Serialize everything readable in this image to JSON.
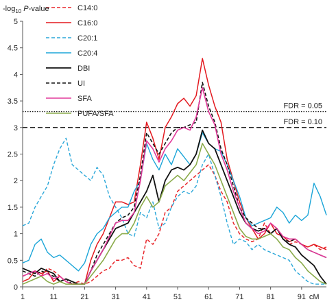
{
  "chart_data": {
    "type": "line",
    "ylabel_parts": {
      "prefix": "-log",
      "sub": "10",
      "italic": "P",
      "suffix": "-value"
    },
    "xunit": "cM",
    "xlim": [
      1,
      99
    ],
    "ylim": [
      0,
      5
    ],
    "xticks": [
      1,
      11,
      21,
      31,
      41,
      51,
      61,
      71,
      81,
      91
    ],
    "yticks": [
      0,
      0.5,
      1,
      1.5,
      2,
      2.5,
      3,
      3.5,
      4,
      4.5,
      5
    ],
    "ytick_labels": [
      "0",
      "0.5",
      "1",
      "1.5",
      "2",
      "2.5",
      "3",
      "3.5",
      "4",
      "4.5",
      "5"
    ],
    "xtick_labels": [
      "1",
      "11",
      "21",
      "31",
      "41",
      "51",
      "61",
      "71",
      "81",
      "91"
    ],
    "thresholds": [
      {
        "label": "FDR = 0.05",
        "value": 3.3,
        "style": "dotted"
      },
      {
        "label": "FDR = 0.10",
        "value": 3.0,
        "style": "dashed"
      }
    ],
    "grid": false,
    "legend_position": "top-left",
    "x": [
      1,
      3,
      5,
      7,
      9,
      11,
      13,
      15,
      17,
      19,
      21,
      23,
      25,
      27,
      29,
      31,
      33,
      35,
      37,
      39,
      41,
      43,
      45,
      47,
      49,
      51,
      53,
      55,
      57,
      59,
      61,
      63,
      65,
      67,
      69,
      71,
      73,
      75,
      77,
      79,
      81,
      83,
      85,
      87,
      89,
      91,
      93,
      95,
      97,
      99
    ],
    "series": [
      {
        "name": "C14:0",
        "color": "#e8262b",
        "dash": "5,3",
        "width": 1.5,
        "values": [
          0.2,
          0.25,
          0.3,
          0.2,
          0.35,
          0.3,
          0.2,
          0.1,
          0.05,
          0.1,
          0.05,
          0.1,
          0.2,
          0.3,
          0.35,
          0.5,
          0.5,
          0.55,
          0.4,
          0.35,
          0.9,
          0.8,
          1.0,
          1.4,
          1.5,
          1.8,
          1.9,
          2.0,
          2.1,
          2.2,
          2.3,
          2.1,
          1.8,
          1.6,
          1.2,
          1.0,
          0.9,
          0.85,
          0.9,
          1.2,
          1.0,
          1.1,
          0.9,
          0.8,
          0.85,
          0.8,
          0.75,
          0.8,
          0.7,
          0.75
        ]
      },
      {
        "name": "C16:0",
        "color": "#e3191f",
        "dash": "",
        "width": 1.5,
        "values": [
          0.1,
          0.15,
          0.3,
          0.25,
          0.3,
          0.1,
          0.2,
          0.1,
          0.05,
          0.05,
          0.05,
          0.5,
          0.8,
          1.0,
          1.3,
          1.6,
          1.6,
          1.55,
          1.6,
          2.3,
          3.1,
          2.8,
          2.4,
          3.0,
          3.2,
          3.45,
          3.55,
          3.4,
          3.6,
          4.3,
          3.8,
          3.4,
          3.1,
          2.4,
          2.0,
          1.6,
          1.3,
          1.1,
          0.9,
          1.0,
          1.2,
          1.0,
          0.95,
          0.85,
          0.9,
          0.8,
          0.75,
          0.8,
          0.75,
          0.7
        ]
      },
      {
        "name": "C20:1",
        "color": "#2aa7d9",
        "dash": "5,3",
        "width": 1.4,
        "values": [
          1.15,
          1.2,
          1.5,
          1.7,
          1.9,
          2.3,
          2.6,
          2.8,
          2.3,
          2.2,
          2.1,
          2.0,
          2.25,
          2.1,
          1.7,
          1.5,
          1.3,
          1.0,
          0.95,
          1.4,
          1.3,
          1.6,
          1.1,
          1.2,
          1.5,
          1.7,
          1.8,
          1.75,
          1.9,
          2.3,
          2.5,
          2.1,
          1.7,
          1.2,
          0.8,
          0.9,
          0.85,
          0.7,
          0.8,
          0.7,
          0.65,
          0.6,
          0.55,
          0.5,
          0.3,
          0.2,
          0.1,
          0.05,
          0.05,
          0.05
        ]
      },
      {
        "name": "C20:4",
        "color": "#1ba5d8",
        "dash": "",
        "width": 1.4,
        "values": [
          0.45,
          0.5,
          0.8,
          0.9,
          0.65,
          0.55,
          0.6,
          0.5,
          0.4,
          0.3,
          0.45,
          0.8,
          1.0,
          1.1,
          1.3,
          1.4,
          1.5,
          1.5,
          1.8,
          2.0,
          2.7,
          2.4,
          2.2,
          2.5,
          2.3,
          2.6,
          2.45,
          2.3,
          2.5,
          2.9,
          2.7,
          2.6,
          2.55,
          2.3,
          2.0,
          1.7,
          1.3,
          1.15,
          1.2,
          1.25,
          1.3,
          1.5,
          1.4,
          1.2,
          1.35,
          1.25,
          1.35,
          1.95,
          1.7,
          1.35
        ]
      },
      {
        "name": "DBI",
        "color": "#111111",
        "dash": "",
        "width": 1.8,
        "values": [
          0.35,
          0.3,
          0.25,
          0.35,
          0.3,
          0.25,
          0.1,
          0.15,
          0.1,
          0.05,
          0.05,
          0.3,
          0.5,
          0.7,
          0.9,
          1.1,
          1.15,
          1.2,
          1.4,
          1.6,
          1.8,
          2.1,
          1.6,
          2.0,
          2.2,
          2.25,
          2.2,
          2.3,
          2.5,
          2.95,
          2.7,
          2.6,
          2.3,
          2.0,
          1.7,
          1.4,
          1.2,
          1.1,
          1.05,
          1.1,
          1.0,
          1.1,
          0.9,
          0.8,
          0.75,
          0.6,
          0.5,
          0.4,
          0.2,
          0.05
        ]
      },
      {
        "name": "UI",
        "color": "#111111",
        "dash": "5,3",
        "width": 1.6,
        "values": [
          0.3,
          0.25,
          0.2,
          0.3,
          0.25,
          0.2,
          0.1,
          0.15,
          0.05,
          0.05,
          0.05,
          0.3,
          0.6,
          0.8,
          1.0,
          1.2,
          1.3,
          1.35,
          1.5,
          2.1,
          2.9,
          2.7,
          2.5,
          2.7,
          2.9,
          3.0,
          3.0,
          3.05,
          3.1,
          3.85,
          3.4,
          3.1,
          2.6,
          2.3,
          1.9,
          1.5,
          1.3,
          1.2,
          1.1,
          1.1,
          1.0,
          1.1,
          0.9,
          0.85,
          0.9,
          0.8,
          0.7,
          0.65,
          0.6,
          0.55
        ]
      },
      {
        "name": "SFA",
        "color": "#e2399a",
        "dash": "",
        "width": 1.6,
        "values": [
          0.2,
          0.25,
          0.3,
          0.2,
          0.25,
          0.15,
          0.2,
          0.1,
          0.05,
          0.05,
          0.05,
          0.3,
          0.5,
          0.7,
          0.95,
          1.2,
          1.25,
          1.25,
          1.4,
          2.0,
          2.75,
          2.6,
          2.35,
          2.6,
          2.75,
          2.95,
          3.0,
          2.95,
          3.2,
          3.75,
          3.3,
          3.05,
          2.5,
          2.2,
          1.8,
          1.5,
          1.2,
          1.1,
          1.0,
          1.05,
          1.2,
          1.1,
          0.95,
          0.9,
          0.9,
          0.8,
          0.7,
          0.65,
          0.6,
          0.55
        ]
      },
      {
        "name": "PUFA/SFA",
        "color": "#8aab4a",
        "dash": "",
        "width": 1.6,
        "values": [
          0.05,
          0.1,
          0.15,
          0.2,
          0.1,
          0.05,
          0.1,
          0.05,
          0.05,
          0.05,
          0.05,
          0.2,
          0.35,
          0.5,
          0.7,
          0.9,
          1.0,
          1.0,
          1.2,
          1.5,
          1.7,
          1.5,
          1.6,
          1.9,
          2.0,
          2.1,
          2.0,
          2.15,
          2.3,
          2.7,
          2.5,
          2.3,
          2.0,
          1.7,
          1.4,
          1.1,
          0.95,
          0.9,
          0.9,
          0.95,
          1.0,
          0.9,
          0.75,
          0.7,
          0.55,
          0.45,
          0.3,
          0.2,
          0.1,
          0.05
        ]
      }
    ]
  }
}
